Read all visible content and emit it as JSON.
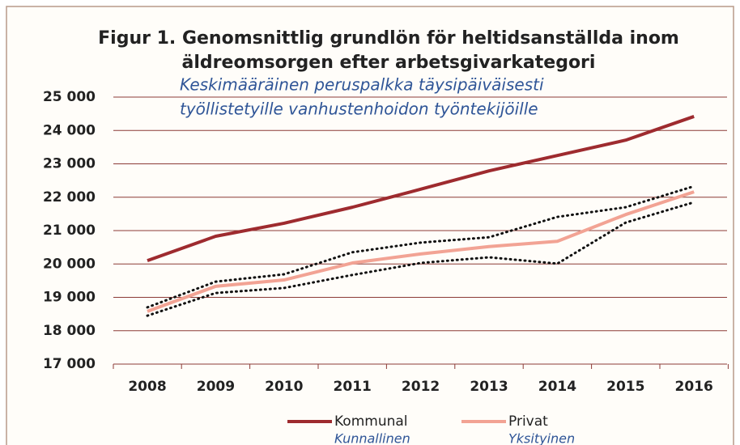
{
  "chart_data": {
    "type": "line",
    "title": [
      "Figur 1. Genomsnittlig grundlön för heltidsanställda  inom",
      "äldreomsorgen efter arbetsgivarkategori"
    ],
    "subtitle": [
      "Keskimääräinen peruspalkka täysipäiväisesti",
      "työllistetyille vanhustenhoidon työntekijöille"
    ],
    "categories": [
      "2008",
      "2009",
      "2010",
      "2011",
      "2012",
      "2013",
      "2014",
      "2015",
      "2016"
    ],
    "series": [
      {
        "name": "Kommunal",
        "subname": "Kunnallinen",
        "color": "#9e2b2f",
        "style": "solid",
        "values": [
          20100,
          20830,
          21220,
          21700,
          22240,
          22790,
          23250,
          23710,
          24420
        ]
      },
      {
        "name": "Privat",
        "subname": "Yksityinen",
        "color": "#f2a394",
        "style": "solid",
        "values": [
          18580,
          19330,
          19520,
          20030,
          20300,
          20520,
          20680,
          21480,
          22160
        ]
      },
      {
        "color": "#111111",
        "style": "dotted",
        "values": [
          18700,
          19470,
          19690,
          20350,
          20640,
          20800,
          21410,
          21700,
          22330
        ]
      },
      {
        "color": "#111111",
        "style": "dotted",
        "values": [
          18450,
          19130,
          19280,
          19670,
          20030,
          20200,
          20010,
          21240,
          21850
        ]
      }
    ],
    "ylim": [
      17000,
      25000
    ],
    "yticks": [
      {
        "value": 17000,
        "label": "17 000"
      },
      {
        "value": 18000,
        "label": "18 000"
      },
      {
        "value": 19000,
        "label": "19 000"
      },
      {
        "value": 20000,
        "label": "20 000"
      },
      {
        "value": 21000,
        "label": "21 000"
      },
      {
        "value": 22000,
        "label": "22 000"
      },
      {
        "value": 23000,
        "label": "23 000"
      },
      {
        "value": 24000,
        "label": "24 000"
      },
      {
        "value": 25000,
        "label": "25 000"
      }
    ],
    "grid": true
  }
}
